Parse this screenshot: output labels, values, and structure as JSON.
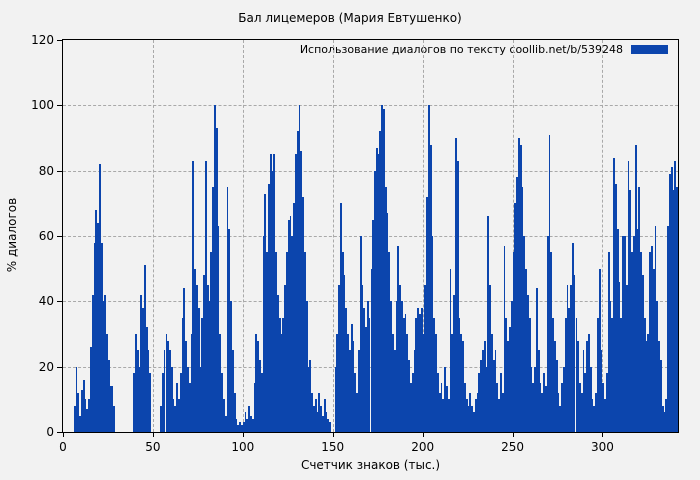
{
  "chart_data": {
    "type": "bar",
    "title": "Бал лицемеров (Мария Евтушенко)",
    "legend": "Использование диалогов по тексту  coollib.net/b/539248",
    "xlabel": "Счетчик знаков (тыс.)",
    "ylabel": "% диалогов",
    "xlim": [
      0,
      342
    ],
    "ylim": [
      0,
      120
    ],
    "xticks": [
      0,
      50,
      100,
      150,
      200,
      250,
      300
    ],
    "yticks": [
      0,
      20,
      40,
      60,
      80,
      100,
      120
    ],
    "grid": true,
    "legend_position": "top-right",
    "bar_color": "#0c45ad",
    "background_color": "#f2f2f2",
    "grid_color": "#a9a9a9",
    "x_start": 0,
    "x_step": 1,
    "values": [
      0,
      0,
      0,
      0,
      0,
      0,
      8,
      20,
      12,
      5,
      13,
      16,
      10,
      7,
      10,
      26,
      42,
      58,
      68,
      64,
      82,
      58,
      40,
      42,
      30,
      22,
      14,
      14,
      8,
      0,
      0,
      0,
      0,
      0,
      0,
      0,
      0,
      0,
      0,
      18,
      30,
      25,
      20,
      42,
      38,
      51,
      32,
      25,
      18,
      0,
      0,
      0,
      0,
      0,
      8,
      18,
      25,
      30,
      28,
      25,
      20,
      10,
      8,
      15,
      10,
      18,
      35,
      44,
      28,
      20,
      15,
      30,
      83,
      50,
      45,
      38,
      20,
      35,
      48,
      83,
      45,
      40,
      55,
      75,
      100,
      93,
      63,
      30,
      18,
      10,
      5,
      75,
      62,
      40,
      25,
      12,
      4,
      2,
      3,
      2,
      3,
      6,
      4,
      8,
      5,
      4,
      15,
      30,
      28,
      22,
      18,
      60,
      73,
      55,
      76,
      85,
      80,
      85,
      55,
      42,
      35,
      30,
      35,
      45,
      55,
      65,
      66,
      60,
      70,
      85,
      92,
      100,
      86,
      72,
      55,
      40,
      20,
      22,
      12,
      8,
      10,
      6,
      12,
      8,
      5,
      10,
      6,
      4,
      3,
      0,
      0,
      20,
      30,
      45,
      70,
      55,
      48,
      38,
      30,
      25,
      33,
      28,
      18,
      12,
      25,
      60,
      45,
      38,
      32,
      40,
      35,
      50,
      65,
      80,
      87,
      85,
      92,
      100,
      99,
      75,
      67,
      55,
      40,
      30,
      25,
      40,
      57,
      45,
      40,
      35,
      36,
      30,
      22,
      15,
      18,
      25,
      35,
      38,
      36,
      38,
      30,
      45,
      72,
      100,
      88,
      60,
      35,
      30,
      18,
      12,
      15,
      10,
      20,
      14,
      10,
      50,
      30,
      42,
      90,
      83,
      35,
      30,
      28,
      15,
      10,
      8,
      12,
      8,
      6,
      10,
      12,
      18,
      22,
      25,
      28,
      20,
      66,
      45,
      30,
      22,
      25,
      15,
      10,
      18,
      12,
      57,
      35,
      28,
      32,
      40,
      55,
      70,
      78,
      90,
      88,
      75,
      60,
      50,
      42,
      35,
      20,
      15,
      20,
      44,
      25,
      15,
      12,
      18,
      14,
      60,
      91,
      55,
      35,
      28,
      22,
      12,
      8,
      15,
      20,
      35,
      45,
      38,
      45,
      58,
      48,
      35,
      28,
      15,
      12,
      25,
      18,
      28,
      30,
      20,
      10,
      8,
      12,
      35,
      50,
      25,
      15,
      10,
      18,
      55,
      40,
      35,
      84,
      76,
      62,
      46,
      35,
      60,
      60,
      45,
      83,
      74,
      55,
      60,
      88,
      62,
      75,
      55,
      48,
      35,
      28,
      30,
      55,
      57,
      50,
      63,
      40,
      28,
      22,
      8,
      6,
      10,
      63,
      79,
      81,
      74,
      83,
      75
    ]
  }
}
